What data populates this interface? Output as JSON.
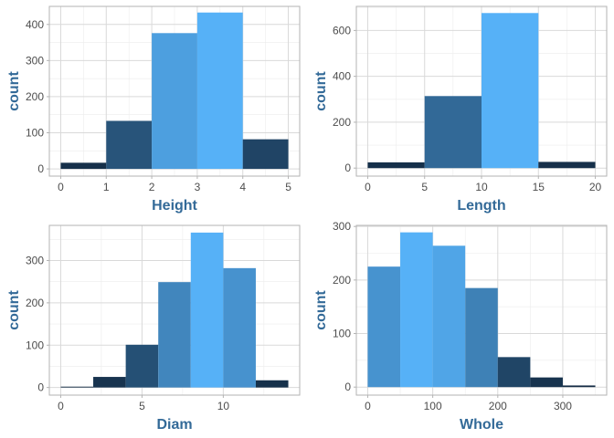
{
  "chart_data": [
    {
      "type": "bar",
      "xlabel": "Height",
      "ylabel": "count",
      "bins": [
        {
          "x0": 0,
          "x1": 1,
          "count": 17
        },
        {
          "x0": 1,
          "x1": 2,
          "count": 133
        },
        {
          "x0": 2,
          "x1": 3,
          "count": 376
        },
        {
          "x0": 3,
          "x1": 4,
          "count": 433
        },
        {
          "x0": 4,
          "x1": 5,
          "count": 82
        }
      ],
      "xlim": [
        -0.25,
        5.25
      ],
      "ylim": [
        -20,
        450
      ],
      "xticks": [
        0,
        1,
        2,
        3,
        4,
        5
      ],
      "yticks": [
        0,
        100,
        200,
        300,
        400
      ],
      "grid": true
    },
    {
      "type": "bar",
      "xlabel": "Length",
      "ylabel": "count",
      "bins": [
        {
          "x0": 0,
          "x1": 5,
          "count": 25
        },
        {
          "x0": 5,
          "x1": 10,
          "count": 314
        },
        {
          "x0": 10,
          "x1": 15,
          "count": 676
        },
        {
          "x0": 15,
          "x1": 20,
          "count": 27
        }
      ],
      "xlim": [
        -1,
        21
      ],
      "ylim": [
        -35,
        705
      ],
      "xticks": [
        0,
        5,
        10,
        15,
        20
      ],
      "yticks": [
        0,
        200,
        400,
        600
      ],
      "grid": true
    },
    {
      "type": "bar",
      "xlabel": "Diam",
      "ylabel": "count",
      "bins": [
        {
          "x0": 0,
          "x1": 2,
          "count": 2
        },
        {
          "x0": 2,
          "x1": 4,
          "count": 25
        },
        {
          "x0": 4,
          "x1": 6,
          "count": 101
        },
        {
          "x0": 6,
          "x1": 8,
          "count": 249
        },
        {
          "x0": 8,
          "x1": 10,
          "count": 366
        },
        {
          "x0": 10,
          "x1": 12,
          "count": 282
        },
        {
          "x0": 12,
          "x1": 14,
          "count": 17
        }
      ],
      "xlim": [
        -0.7,
        14.7
      ],
      "ylim": [
        -18,
        383
      ],
      "xticks": [
        0,
        5,
        10
      ],
      "yticks": [
        0,
        100,
        200,
        300
      ],
      "grid": true
    },
    {
      "type": "bar",
      "xlabel": "Whole",
      "ylabel": "count",
      "bins": [
        {
          "x0": 0,
          "x1": 50,
          "count": 225
        },
        {
          "x0": 50,
          "x1": 100,
          "count": 289
        },
        {
          "x0": 100,
          "x1": 150,
          "count": 264
        },
        {
          "x0": 150,
          "x1": 200,
          "count": 185
        },
        {
          "x0": 200,
          "x1": 250,
          "count": 56
        },
        {
          "x0": 250,
          "x1": 300,
          "count": 18
        },
        {
          "x0": 300,
          "x1": 350,
          "count": 3
        }
      ],
      "xlim": [
        -17.5,
        367.5
      ],
      "ylim": [
        -15,
        302
      ],
      "xticks": [
        0,
        100,
        200,
        300
      ],
      "yticks": [
        0,
        100,
        200,
        300
      ],
      "grid": true
    }
  ],
  "colors": {
    "fill_low": "#132b43",
    "fill_high": "#56b1f7",
    "axis_title": "#336a98",
    "tick_text": "#4d4d4d",
    "grid": "#d9d9d9",
    "border": "#b3b3b3"
  }
}
